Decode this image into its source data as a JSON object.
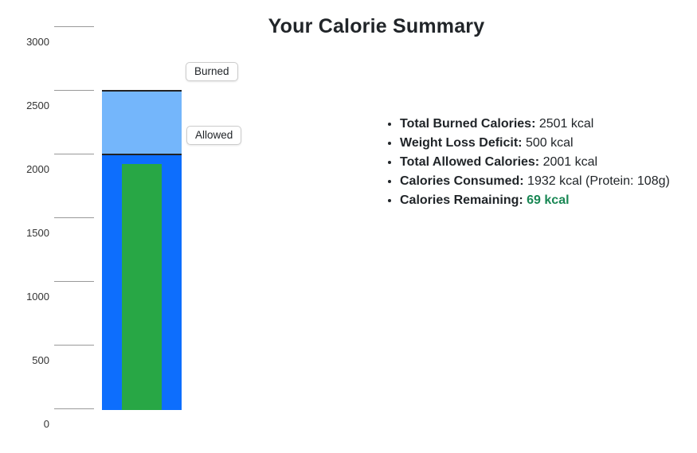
{
  "title": "Your Calorie Summary",
  "chart_data": {
    "type": "bar",
    "title": "Your Calorie Summary",
    "unit": "kcal",
    "ylim": [
      0,
      3000
    ],
    "yticks": [
      0,
      500,
      1000,
      1500,
      2000,
      2500,
      3000
    ],
    "grid": false,
    "legend_position": "chips-right-of-bar",
    "series": [
      {
        "name": "burned",
        "label": "Burned",
        "value": 2501
      },
      {
        "name": "allowed",
        "label": "Allowed",
        "value": 2001
      },
      {
        "name": "consumed",
        "label": "Consumed",
        "value": 1932
      }
    ]
  },
  "colors": {
    "burned": "#74b6fb",
    "allowed": "#0d6efd",
    "consumed": "#28a745",
    "bar_border": "#222222",
    "remaining_text": "#198754"
  },
  "chart_labels": {
    "burned": "Burned",
    "allowed": "Allowed"
  },
  "summary": {
    "items": [
      {
        "label": "Total Burned Calories:",
        "value": "2501 kcal"
      },
      {
        "label": "Weight Loss Deficit:",
        "value": "500 kcal"
      },
      {
        "label": "Total Allowed Calories:",
        "value": "2001 kcal"
      },
      {
        "label": "Calories Consumed:",
        "value": "1932 kcal (Protein: 108g)"
      },
      {
        "label": "Calories Remaining:",
        "value": "69 kcal"
      }
    ]
  }
}
